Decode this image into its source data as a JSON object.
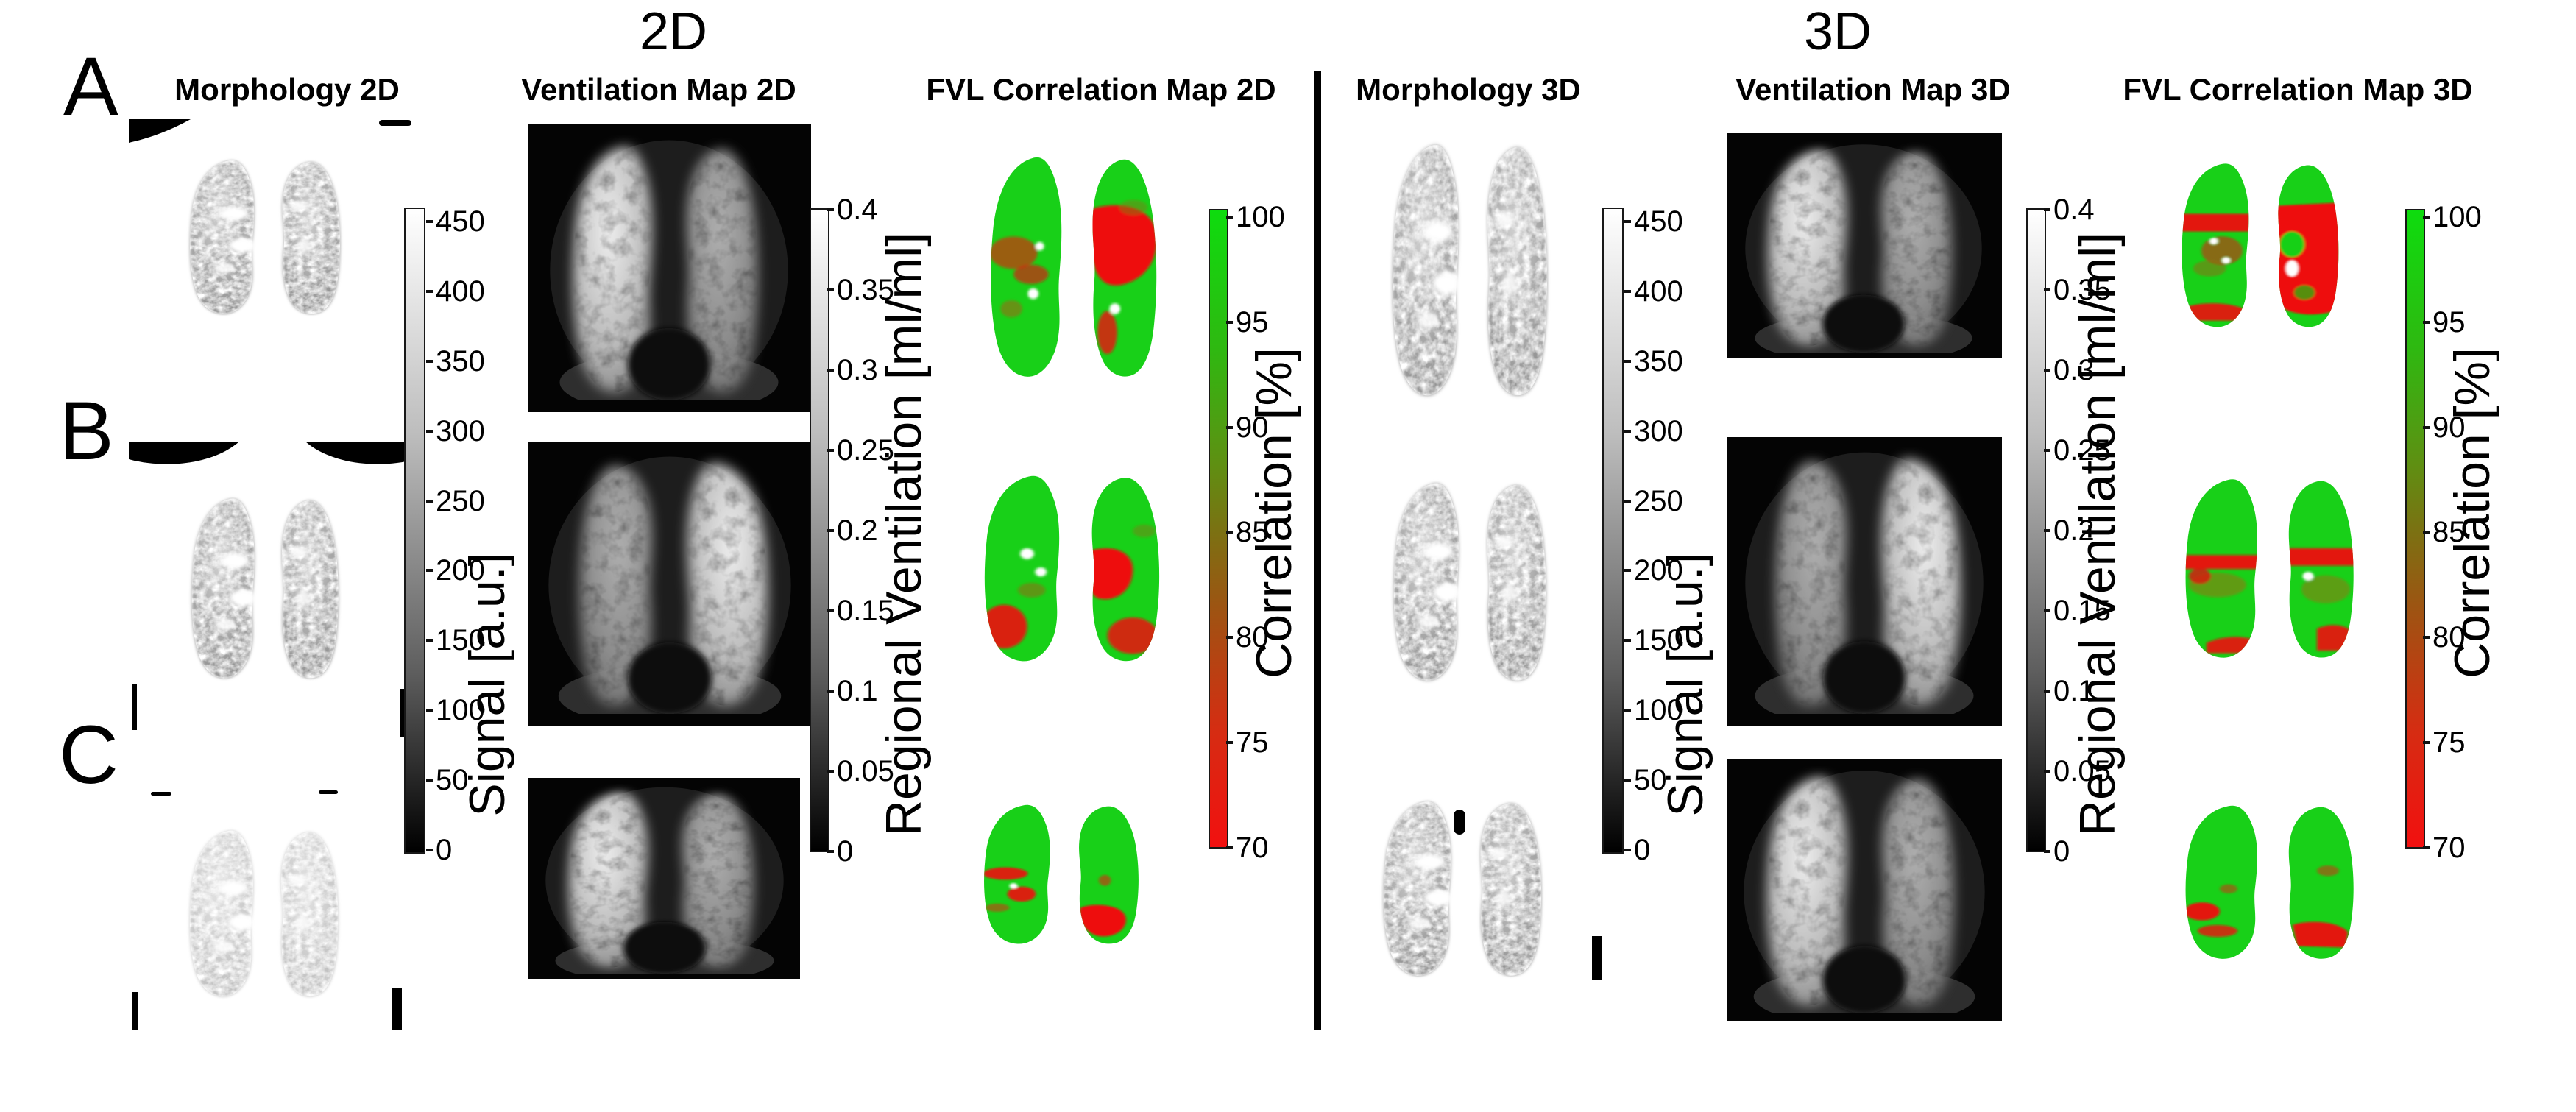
{
  "figure": {
    "section_2d": {
      "title": "2D",
      "headers": [
        "Morphology 2D",
        "Ventilation Map 2D",
        "FVL Correlation Map 2D"
      ]
    },
    "section_3d": {
      "title": "3D",
      "headers": [
        "Morphology 3D",
        "Ventilation Map 3D",
        "FVL Correlation Map 3D"
      ]
    },
    "row_labels": [
      "A",
      "B",
      "C"
    ],
    "colorbars": {
      "signal": {
        "label": "Signal [a.u.]",
        "ticks": [
          "450",
          "400",
          "350",
          "300",
          "250",
          "200",
          "150",
          "100",
          "50",
          "0"
        ],
        "gradient_top": "#ffffff",
        "gradient_bottom": "#000000"
      },
      "ventilation": {
        "label": "Regional Ventilation [ml/ml]",
        "ticks": [
          "0.4",
          "0.35",
          "0.3",
          "0.25",
          "0.2",
          "0.15",
          "0.1",
          "0.05",
          "0"
        ],
        "gradient_top": "#ffffff",
        "gradient_bottom": "#000000"
      },
      "correlation": {
        "label": "Correlation [%]",
        "ticks": [
          "100",
          "95",
          "90",
          "85",
          "80",
          "75",
          "70"
        ],
        "gradient_top": "#0edc0e",
        "gradient_mid": "#7a7212",
        "gradient_bottom": "#f21010"
      }
    },
    "colors": {
      "background": "#ffffff",
      "divider": "#000000",
      "ventilation_map_background": "#040404",
      "correlation_green": "#18d018",
      "correlation_red": "#ee1111"
    }
  }
}
